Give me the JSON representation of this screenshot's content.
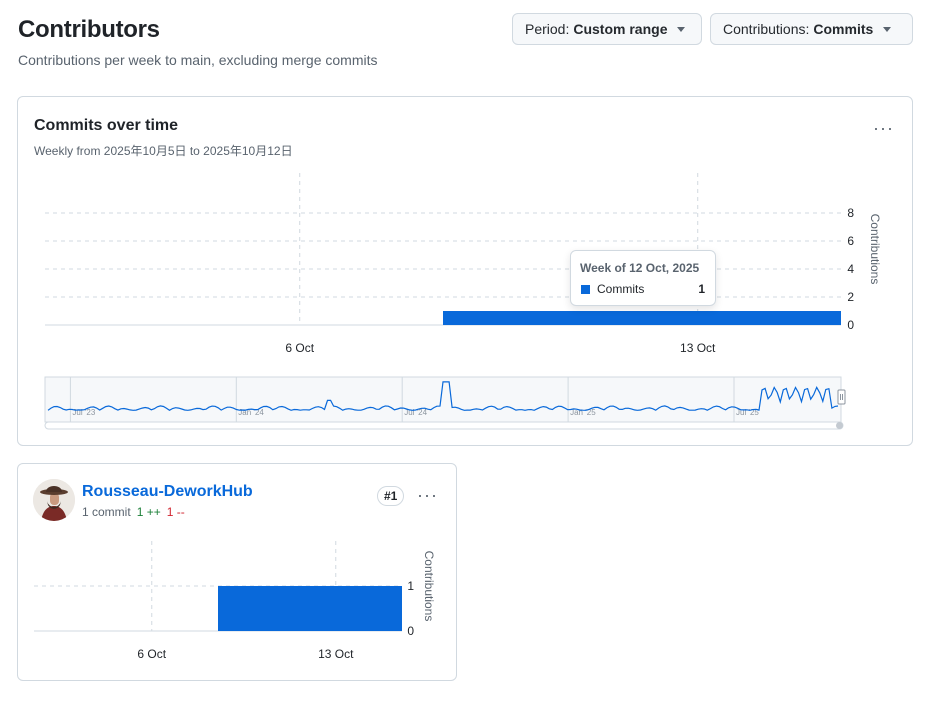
{
  "header": {
    "title": "Contributors",
    "subtitle": "Contributions per week to main, excluding merge commits",
    "period_label": "Period:",
    "period_value": "Custom range",
    "contrib_label": "Contributions:",
    "contrib_value": "Commits"
  },
  "main_chart": {
    "title": "Commits over time",
    "subtitle": "Weekly from 2025年10月5日 to 2025年10月12日",
    "menu_glyph": "···",
    "tooltip": {
      "title": "Week of 12 Oct, 2025",
      "series": "Commits",
      "value": "1"
    }
  },
  "overview": {
    "ticks": [
      "Jul '23",
      "Jan '24",
      "Jul '24",
      "Jan '25",
      "Jul '25"
    ]
  },
  "user_card": {
    "name": "Rousseau-DeworkHub",
    "commits": "1 commit",
    "additions": "1 ++",
    "deletions": "1 --",
    "rank": "#1",
    "menu_glyph": "···"
  },
  "colors": {
    "accent": "#0969da",
    "border": "#d1d9e0",
    "muted": "#59636e"
  },
  "chart_data": [
    {
      "type": "bar",
      "title": "Commits over time",
      "x": [
        "2025-10-05",
        "2025-10-12"
      ],
      "x_tick_labels": [
        "6 Oct",
        "13 Oct"
      ],
      "values": [
        0,
        1
      ],
      "ylabel": "Contributions",
      "y_ticks": [
        0,
        2,
        4,
        6,
        8
      ],
      "ylim": [
        0,
        10
      ],
      "grid": true
    },
    {
      "type": "bar",
      "title": "Rousseau-DeworkHub",
      "x": [
        "2025-10-05",
        "2025-10-12"
      ],
      "x_tick_labels": [
        "6 Oct",
        "13 Oct"
      ],
      "values": [
        0,
        1
      ],
      "ylabel": "Contributions",
      "y_ticks": [
        0,
        1
      ],
      "ylim": [
        0,
        1
      ],
      "grid": true
    }
  ]
}
